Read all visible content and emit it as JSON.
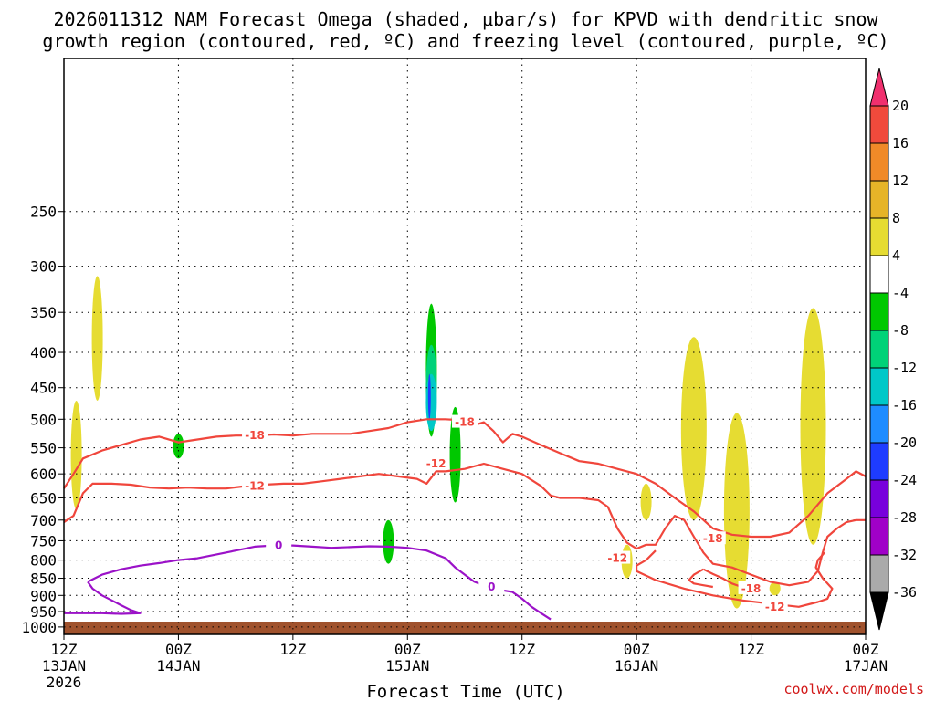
{
  "chart_data": {
    "type": "time-height cross section",
    "title_line1": "2026011312 NAM Forecast Omega (shaded, μbar/s) for KPVD with dendritic snow",
    "title_line2": "growth region (contoured, red, ºC) and freezing level (contoured, purple, ºC)",
    "xlabel": "Forecast Time (UTC)",
    "credit": "coolwx.com/models",
    "x_range_hours": [
      0,
      84
    ],
    "y_range_mb": [
      1025,
      150
    ],
    "y_ticks": [
      "250",
      "300",
      "350",
      "400",
      "450",
      "500",
      "550",
      "600",
      "650",
      "700",
      "750",
      "800",
      "850",
      "900",
      "950",
      "1000"
    ],
    "x_ticks": [
      {
        "hour": 0,
        "line1": "12Z",
        "line2": "13JAN",
        "line3": "2026"
      },
      {
        "hour": 12,
        "line1": "00Z",
        "line2": "14JAN",
        "line3": ""
      },
      {
        "hour": 24,
        "line1": "12Z",
        "line2": "",
        "line3": ""
      },
      {
        "hour": 36,
        "line1": "00Z",
        "line2": "15JAN",
        "line3": ""
      },
      {
        "hour": 48,
        "line1": "12Z",
        "line2": "",
        "line3": ""
      },
      {
        "hour": 60,
        "line1": "00Z",
        "line2": "16JAN",
        "line3": ""
      },
      {
        "hour": 72,
        "line1": "12Z",
        "line2": "",
        "line3": ""
      },
      {
        "hour": 84,
        "line1": "00Z",
        "line2": "17JAN",
        "line3": ""
      }
    ],
    "colorbar": {
      "labels": [
        "20",
        "16",
        "12",
        "8",
        "4",
        "-4",
        "-8",
        "-12",
        "-16",
        "-20",
        "-24",
        "-28",
        "-32",
        "-36"
      ],
      "colors": [
        "#f0306e",
        "#f04a3c",
        "#f08a28",
        "#e6b428",
        "#e6dc32",
        "#ffffff",
        "#00c800",
        "#00d278",
        "#00c8c8",
        "#1e8cff",
        "#1e3cff",
        "#7800dc",
        "#a000c8",
        "#aaaaaa",
        "#000000"
      ]
    },
    "contour_labels": {
      "dgz_cold": "-18",
      "dgz_warm": "-12",
      "freezing": "0"
    },
    "dgz_upper_-18C": [
      [
        0,
        630
      ],
      [
        1,
        600
      ],
      [
        2,
        570
      ],
      [
        4,
        555
      ],
      [
        6,
        545
      ],
      [
        8,
        535
      ],
      [
        10,
        530
      ],
      [
        12,
        540
      ],
      [
        14,
        535
      ],
      [
        16,
        530
      ],
      [
        18,
        528
      ],
      [
        20,
        528
      ],
      [
        22,
        526
      ],
      [
        24,
        528
      ],
      [
        26,
        525
      ],
      [
        28,
        525
      ],
      [
        30,
        525
      ],
      [
        32,
        520
      ],
      [
        34,
        515
      ],
      [
        36,
        505
      ],
      [
        38,
        500
      ],
      [
        40,
        500
      ],
      [
        42,
        502
      ],
      [
        43,
        510
      ],
      [
        44,
        505
      ],
      [
        45,
        520
      ],
      [
        46,
        540
      ],
      [
        47,
        525
      ],
      [
        48,
        530
      ],
      [
        50,
        545
      ],
      [
        52,
        560
      ],
      [
        54,
        575
      ],
      [
        56,
        580
      ],
      [
        58,
        590
      ],
      [
        60,
        600
      ],
      [
        62,
        620
      ],
      [
        64,
        650
      ],
      [
        66,
        680
      ],
      [
        68,
        720
      ],
      [
        70,
        735
      ],
      [
        72,
        740
      ],
      [
        74,
        740
      ],
      [
        76,
        730
      ],
      [
        78,
        690
      ],
      [
        80,
        640
      ],
      [
        82,
        610
      ],
      [
        83,
        595
      ],
      [
        84,
        605
      ]
    ],
    "dgz_lower_-12C": [
      [
        0,
        705
      ],
      [
        1,
        690
      ],
      [
        2,
        640
      ],
      [
        3,
        620
      ],
      [
        5,
        620
      ],
      [
        7,
        622
      ],
      [
        9,
        628
      ],
      [
        11,
        630
      ],
      [
        13,
        628
      ],
      [
        15,
        630
      ],
      [
        17,
        630
      ],
      [
        19,
        625
      ],
      [
        21,
        622
      ],
      [
        23,
        620
      ],
      [
        25,
        620
      ],
      [
        27,
        615
      ],
      [
        29,
        610
      ],
      [
        31,
        605
      ],
      [
        33,
        600
      ],
      [
        35,
        605
      ],
      [
        37,
        610
      ],
      [
        38,
        620
      ],
      [
        39,
        595
      ],
      [
        40,
        595
      ],
      [
        42,
        590
      ],
      [
        44,
        580
      ],
      [
        46,
        590
      ],
      [
        48,
        600
      ],
      [
        50,
        625
      ],
      [
        51,
        645
      ],
      [
        52,
        650
      ],
      [
        54,
        650
      ],
      [
        56,
        655
      ],
      [
        57,
        670
      ],
      [
        58,
        720
      ],
      [
        59,
        755
      ],
      [
        60,
        770
      ],
      [
        61,
        760
      ],
      [
        62,
        760
      ],
      [
        63,
        720
      ],
      [
        64,
        690
      ],
      [
        65,
        700
      ],
      [
        66,
        740
      ],
      [
        67,
        780
      ],
      [
        68,
        810
      ],
      [
        70,
        820
      ],
      [
        72,
        840
      ],
      [
        74,
        860
      ],
      [
        76,
        870
      ],
      [
        78,
        860
      ],
      [
        79,
        830
      ],
      [
        79.5,
        780
      ],
      [
        80,
        740
      ],
      [
        81,
        720
      ],
      [
        82,
        705
      ],
      [
        83,
        700
      ],
      [
        84,
        700
      ]
    ],
    "dgz_lower_-12C_loop": [
      [
        62,
        775
      ],
      [
        61,
        800
      ],
      [
        60,
        815
      ],
      [
        60,
        830
      ],
      [
        62,
        855
      ],
      [
        65,
        880
      ],
      [
        68,
        900
      ],
      [
        71,
        915
      ],
      [
        74,
        925
      ],
      [
        77,
        935
      ],
      [
        79,
        920
      ],
      [
        80,
        910
      ],
      [
        80.5,
        880
      ],
      [
        79.5,
        850
      ],
      [
        78.8,
        820
      ],
      [
        79,
        800
      ],
      [
        79.7,
        780
      ]
    ],
    "dgz_small_-18C": [
      [
        67,
        825
      ],
      [
        68,
        838
      ],
      [
        69,
        850
      ],
      [
        70,
        865
      ],
      [
        71,
        875
      ],
      [
        72,
        880
      ]
    ],
    "dgz_small_-18C_b": [
      [
        67,
        825
      ],
      [
        66,
        840
      ],
      [
        65.5,
        855
      ],
      [
        66,
        865
      ],
      [
        67,
        870
      ],
      [
        68,
        875
      ]
    ],
    "freezing_0C": [
      [
        2.5,
        860
      ],
      [
        4,
        840
      ],
      [
        6,
        825
      ],
      [
        8,
        815
      ],
      [
        10,
        808
      ],
      [
        12,
        800
      ],
      [
        14,
        795
      ],
      [
        16,
        785
      ],
      [
        18,
        775
      ],
      [
        20,
        765
      ],
      [
        22,
        762
      ],
      [
        24,
        762
      ],
      [
        26,
        765
      ],
      [
        28,
        768
      ],
      [
        30,
        766
      ],
      [
        32,
        764
      ],
      [
        34,
        765
      ],
      [
        36,
        768
      ],
      [
        38,
        775
      ],
      [
        40,
        795
      ],
      [
        41,
        820
      ],
      [
        42,
        840
      ],
      [
        43,
        860
      ],
      [
        44,
        870
      ],
      [
        45,
        880
      ],
      [
        46,
        885
      ],
      [
        47,
        890
      ],
      [
        48,
        910
      ],
      [
        49,
        935
      ],
      [
        50,
        955
      ],
      [
        51,
        975
      ]
    ],
    "freezing_0C_lower": [
      [
        2.5,
        860
      ],
      [
        3,
        880
      ],
      [
        4,
        900
      ],
      [
        5,
        915
      ],
      [
        6,
        930
      ],
      [
        7,
        945
      ],
      [
        8,
        955
      ],
      [
        6,
        957
      ],
      [
        4,
        955
      ],
      [
        2,
        955
      ],
      [
        0,
        955
      ]
    ],
    "omega_areas": [
      {
        "color": "#e6dc32",
        "center_hour": 3.5,
        "p_top": 310,
        "p_bot": 470
      },
      {
        "color": "#e6dc32",
        "center_hour": 1.3,
        "p_top": 470,
        "p_bot": 675
      },
      {
        "color": "#00c800",
        "center_hour": 12.0,
        "p_top": 525,
        "p_bot": 570
      },
      {
        "color": "#00c800",
        "center_hour": 38.5,
        "p_top": 340,
        "p_bot": 530
      },
      {
        "color": "#00d278",
        "center_hour": 38.5,
        "p_top": 390,
        "p_bot": 520
      },
      {
        "color": "#00c8c8",
        "center_hour": 38.5,
        "p_top": 430,
        "p_bot": 520
      },
      {
        "color": "#1e3cff",
        "center_hour": 38.3,
        "p_top": 430,
        "p_bot": 500
      },
      {
        "color": "#00c800",
        "center_hour": 41.0,
        "p_top": 480,
        "p_bot": 660
      },
      {
        "color": "#00c800",
        "center_hour": 34.0,
        "p_top": 700,
        "p_bot": 810
      },
      {
        "color": "#e6dc32",
        "center_hour": 66.0,
        "p_top": 380,
        "p_bot": 700
      },
      {
        "color": "#e6dc32",
        "center_hour": 70.5,
        "p_top": 490,
        "p_bot": 940
      },
      {
        "color": "#e6dc32",
        "center_hour": 78.5,
        "p_top": 345,
        "p_bot": 760
      },
      {
        "color": "#e6dc32",
        "center_hour": 61.0,
        "p_top": 620,
        "p_bot": 700
      },
      {
        "color": "#e6dc32",
        "center_hour": 59.0,
        "p_top": 760,
        "p_bot": 850
      },
      {
        "color": "#e6dc32",
        "center_hour": 74.5,
        "p_top": 860,
        "p_bot": 900
      }
    ]
  }
}
